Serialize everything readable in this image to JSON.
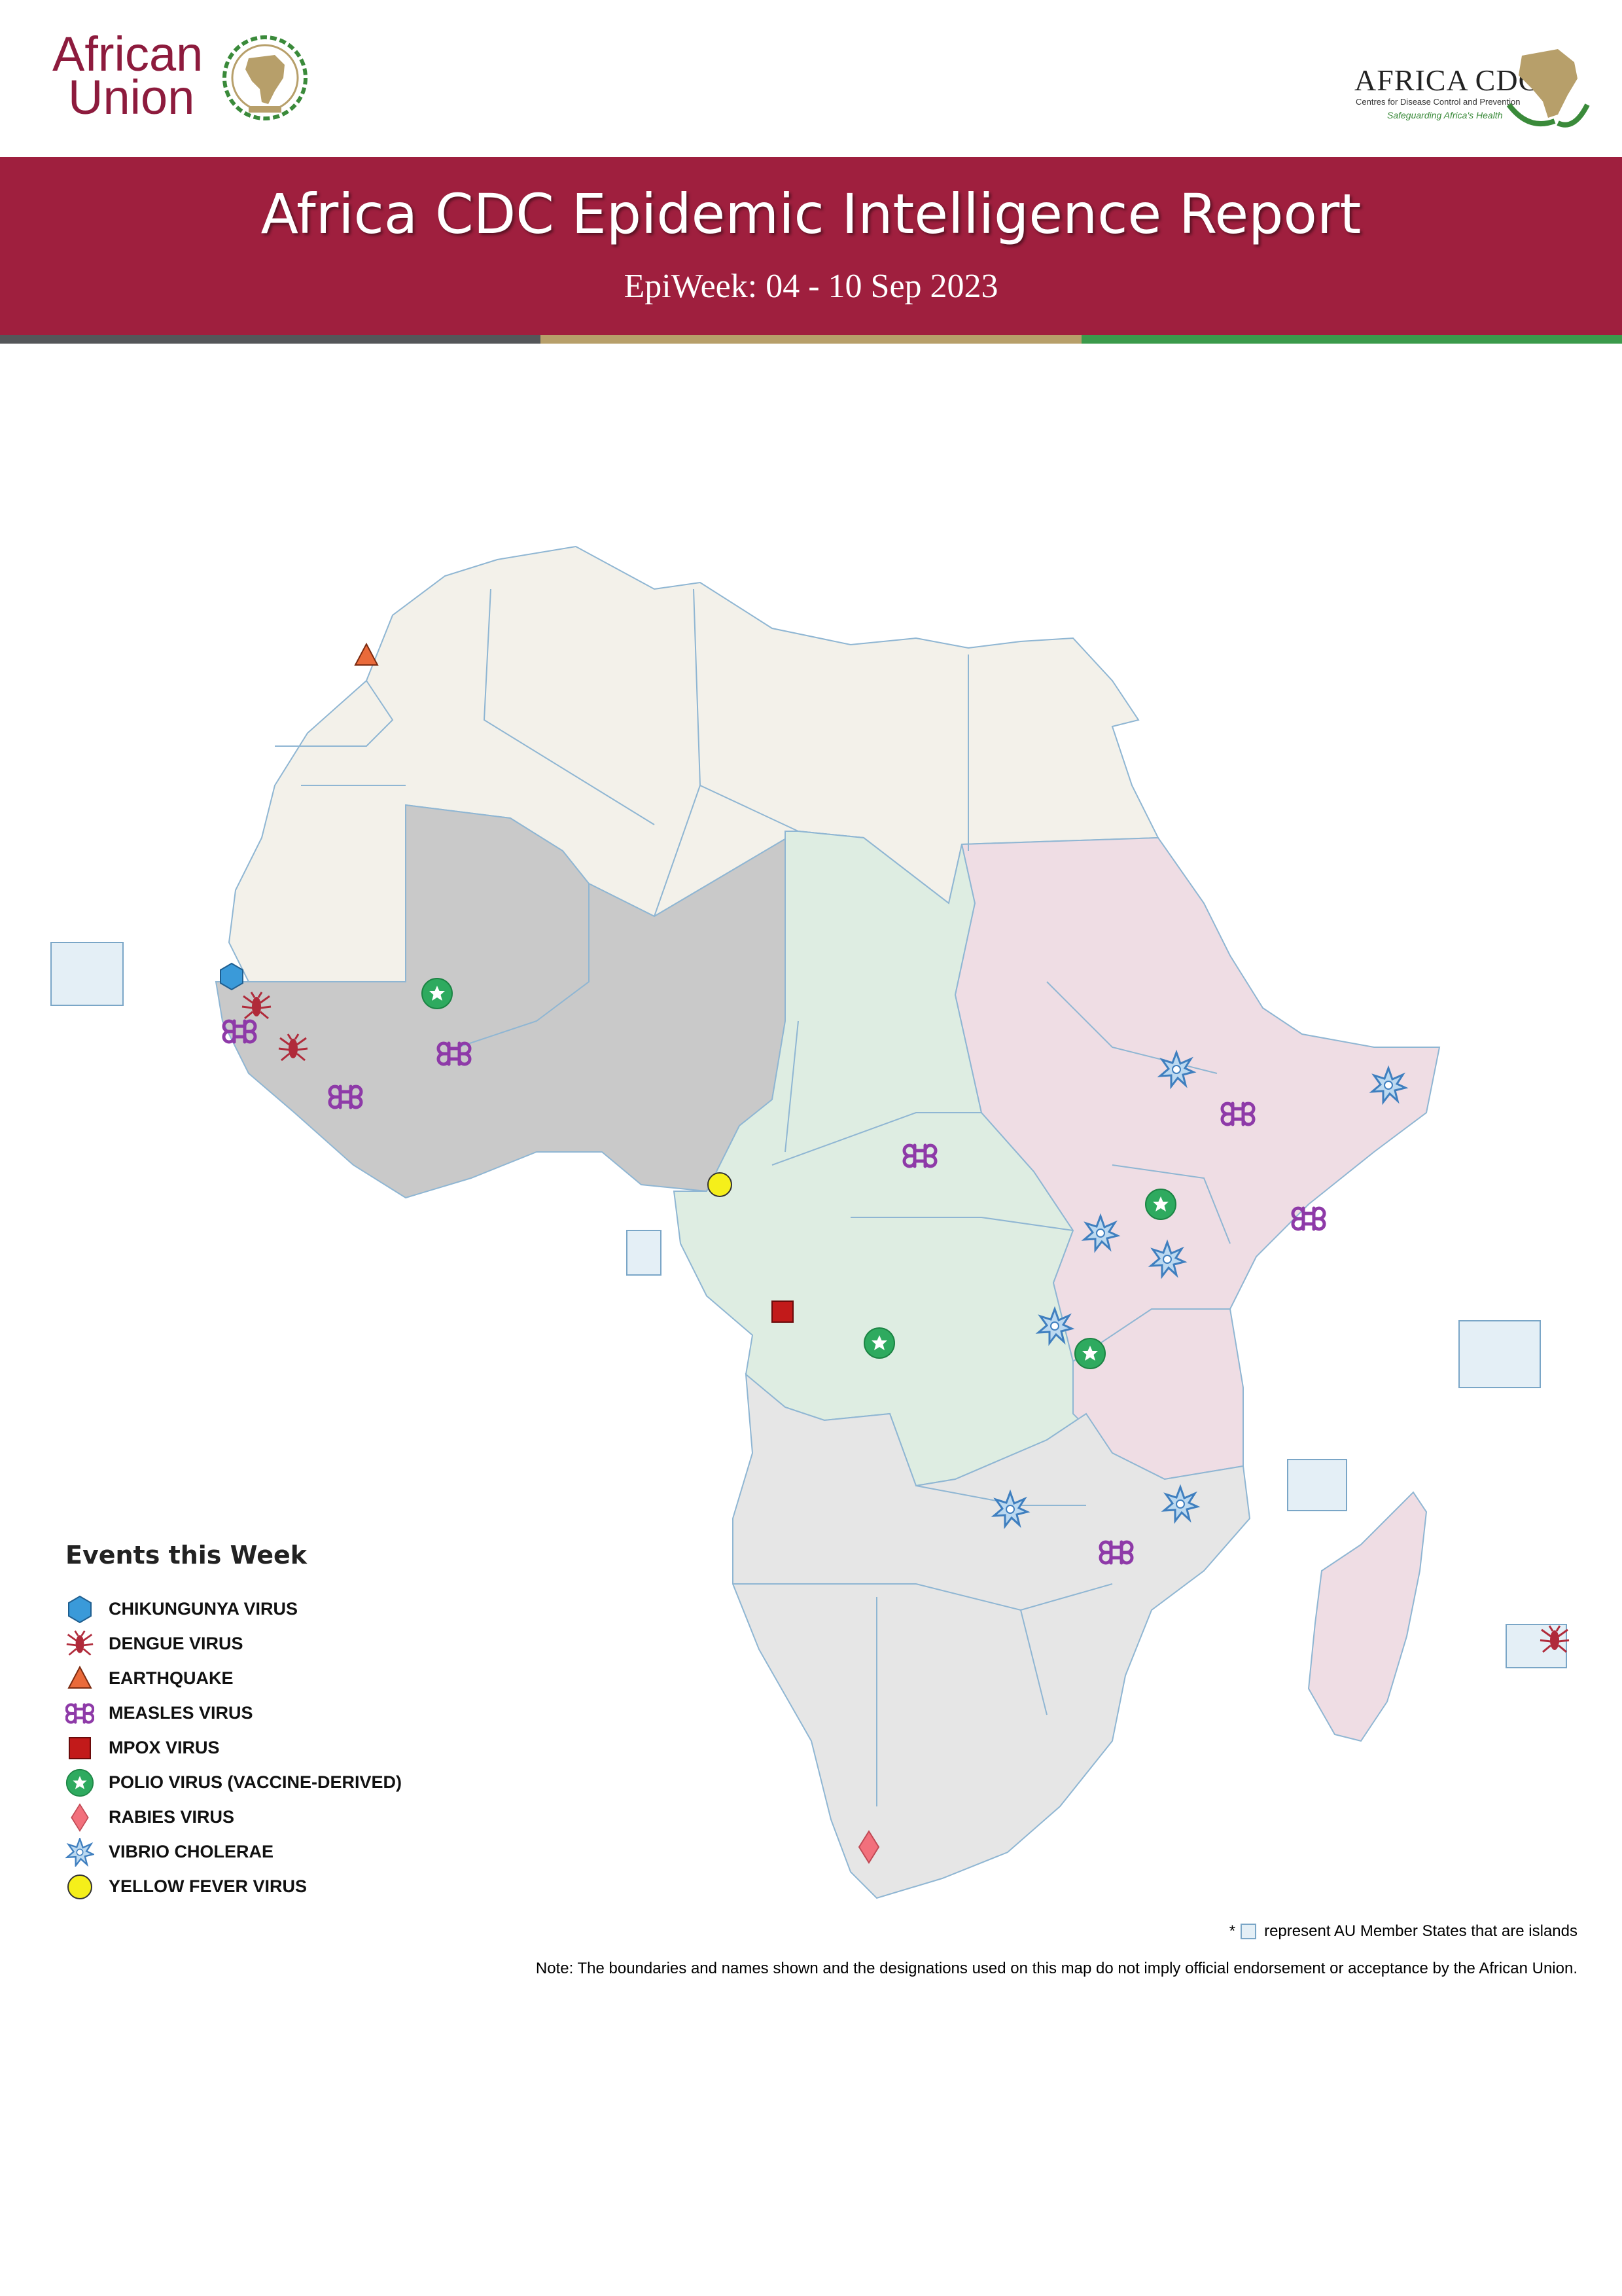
{
  "header": {
    "au_logo_text_line1": "African",
    "au_logo_text_line2": "Union",
    "cdc_logo_text": "AFRICA CDC",
    "cdc_logo_subtitle": "Centres for Disease Control and Prevention",
    "cdc_logo_tagline": "Safeguarding Africa's Health"
  },
  "banner": {
    "title": "Africa CDC Epidemic Intelligence Report",
    "subtitle": "EpiWeek: 04 - 10 Sep 2023"
  },
  "colors": {
    "banner": "#9f1f3e",
    "stripe_left": "#545659",
    "stripe_middle": "#b79f6a",
    "stripe_right": "#3b9a4b",
    "north_region": "#f3f1ea",
    "west_region": "#c9c9c9",
    "central_region": "#deede2",
    "east_region": "#efdde4",
    "southern_region": "#e6e6e6",
    "island_box": "#e4eff6"
  },
  "legend": {
    "title": "Events this Week",
    "items": [
      {
        "label": "CHIKUNGUNYA VIRUS",
        "icon": "hexagon-icon"
      },
      {
        "label": "DENGUE VIRUS",
        "icon": "mosquito-icon"
      },
      {
        "label": "EARTHQUAKE",
        "icon": "triangle-icon"
      },
      {
        "label": "MEASLES VIRUS",
        "icon": "command-icon"
      },
      {
        "label": "MPOX VIRUS",
        "icon": "square-icon"
      },
      {
        "label": "POLIO VIRUS (VACCINE-DERIVED)",
        "icon": "star-circle-icon"
      },
      {
        "label": "RABIES VIRUS",
        "icon": "diamond-icon"
      },
      {
        "label": "VIBRIO CHOLERAE",
        "icon": "star-burst-icon"
      },
      {
        "label": "YELLOW FEVER VIRUS",
        "icon": "circle-icon"
      }
    ]
  },
  "footer": {
    "island_note_prefix": "*",
    "island_note": "represent AU Member States that are islands",
    "disclaimer": "Note: The boundaries and names shown and the designations used on this map do not imply official endorsement or acceptance by the African Union."
  }
}
